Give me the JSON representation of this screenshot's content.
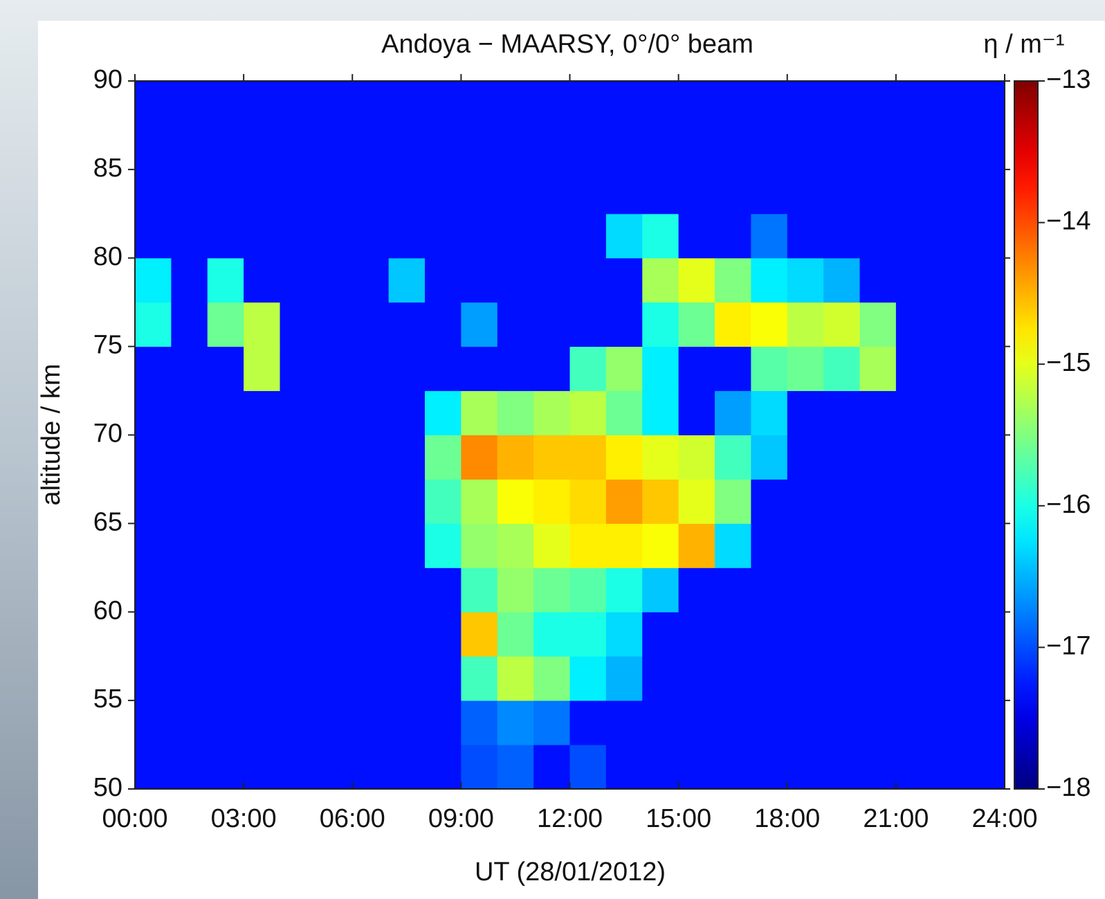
{
  "chart_data": {
    "type": "heatmap",
    "title": "Andoya − MAARSY, 0°/0° beam",
    "xlabel": "UT (28/01/2012)",
    "ylabel": "altitude / km",
    "colorbar_label": "η / m⁻¹",
    "colormap": "jet",
    "xlim": [
      0,
      24
    ],
    "xticks": [
      {
        "value": 0,
        "label": "00:00"
      },
      {
        "value": 3,
        "label": "03:00"
      },
      {
        "value": 6,
        "label": "06:00"
      },
      {
        "value": 9,
        "label": "09:00"
      },
      {
        "value": 12,
        "label": "12:00"
      },
      {
        "value": 15,
        "label": "15:00"
      },
      {
        "value": 18,
        "label": "18:00"
      },
      {
        "value": 21,
        "label": "21:00"
      },
      {
        "value": 24,
        "label": "24:00"
      }
    ],
    "ylim": [
      50,
      90
    ],
    "yticks": [
      50,
      55,
      60,
      65,
      70,
      75,
      80,
      85,
      90
    ],
    "clim": [
      -18,
      -13
    ],
    "cticks": [
      {
        "value": -18,
        "label": "−18"
      },
      {
        "value": -17,
        "label": "−17"
      },
      {
        "value": -16,
        "label": "−16"
      },
      {
        "value": -15,
        "label": "−15"
      },
      {
        "value": -14,
        "label": "−14"
      },
      {
        "value": -13,
        "label": "−13"
      }
    ],
    "x": [
      0.5,
      1.5,
      2.5,
      3.5,
      4.5,
      5.5,
      6.5,
      7.5,
      8.5,
      9.5,
      10.5,
      11.5,
      12.5,
      13.5,
      14.5,
      15.5,
      16.5,
      17.5,
      18.5,
      19.5,
      20.5,
      21.5,
      22.5,
      23.5
    ],
    "y": [
      51.25,
      53.75,
      56.25,
      58.75,
      61.25,
      63.75,
      66.25,
      68.75,
      71.25,
      73.75,
      76.25,
      78.75,
      81.25,
      83.75,
      86.25,
      88.75
    ],
    "z": [
      [
        -17.3,
        -17.3,
        -17.3,
        -17.3,
        -17.3,
        -17.3,
        -17.3,
        -17.3,
        -17.3,
        -17.0,
        -16.9,
        -17.3,
        -17.0,
        -17.3,
        -17.3,
        -17.3,
        -17.3,
        -17.3,
        -17.3,
        -17.3,
        -17.3,
        -17.3,
        -17.3,
        -17.3
      ],
      [
        -17.3,
        -17.3,
        -17.3,
        -17.3,
        -17.3,
        -17.3,
        -17.3,
        -17.3,
        -17.3,
        -16.9,
        -16.7,
        -16.8,
        -17.3,
        -17.3,
        -17.3,
        -17.3,
        -17.3,
        -17.3,
        -17.3,
        -17.3,
        -17.3,
        -17.3,
        -17.3,
        -17.3
      ],
      [
        -17.3,
        -17.3,
        -17.3,
        -17.3,
        -17.3,
        -17.3,
        -17.3,
        -17.3,
        -17.3,
        -15.8,
        -15.2,
        -15.5,
        -16.2,
        -16.5,
        -17.3,
        -17.3,
        -17.3,
        -17.3,
        -17.3,
        -17.3,
        -17.3,
        -17.3,
        -17.3,
        -17.3
      ],
      [
        -17.3,
        -17.3,
        -17.3,
        -17.3,
        -17.3,
        -17.3,
        -17.3,
        -17.3,
        -17.3,
        -14.6,
        -15.6,
        -16.0,
        -16.0,
        -16.3,
        -17.3,
        -17.3,
        -17.3,
        -17.3,
        -17.3,
        -17.3,
        -17.3,
        -17.3,
        -17.3,
        -17.3
      ],
      [
        -17.3,
        -17.3,
        -17.3,
        -17.3,
        -17.3,
        -17.3,
        -17.3,
        -17.3,
        -17.3,
        -15.8,
        -15.4,
        -15.6,
        -15.7,
        -16.0,
        -16.4,
        -17.3,
        -17.3,
        -17.3,
        -17.3,
        -17.3,
        -17.3,
        -17.3,
        -17.3,
        -17.3
      ],
      [
        -17.3,
        -17.3,
        -17.3,
        -17.3,
        -17.3,
        -17.3,
        -17.3,
        -17.3,
        -16.0,
        -15.4,
        -15.3,
        -15.0,
        -14.8,
        -14.8,
        -14.9,
        -14.5,
        -16.3,
        -17.3,
        -17.3,
        -17.3,
        -17.3,
        -17.3,
        -17.3,
        -17.3
      ],
      [
        -17.3,
        -17.3,
        -17.3,
        -17.3,
        -17.3,
        -17.3,
        -17.3,
        -17.3,
        -15.8,
        -15.3,
        -14.9,
        -14.8,
        -14.7,
        -14.4,
        -14.6,
        -15.0,
        -15.5,
        -17.3,
        -17.3,
        -17.3,
        -17.3,
        -17.3,
        -17.3,
        -17.3
      ],
      [
        -17.3,
        -17.3,
        -17.3,
        -17.3,
        -17.3,
        -17.3,
        -17.3,
        -17.3,
        -15.6,
        -14.3,
        -14.5,
        -14.6,
        -14.6,
        -14.8,
        -15.0,
        -15.1,
        -15.8,
        -16.4,
        -17.3,
        -17.3,
        -17.3,
        -17.3,
        -17.3,
        -17.3
      ],
      [
        -17.3,
        -17.3,
        -17.3,
        -17.3,
        -17.3,
        -17.3,
        -17.3,
        -17.3,
        -16.2,
        -15.3,
        -15.5,
        -15.3,
        -15.2,
        -15.6,
        -16.2,
        -17.3,
        -16.6,
        -16.3,
        -17.3,
        -17.3,
        -17.3,
        -17.3,
        -17.3,
        -17.3
      ],
      [
        -17.3,
        -17.3,
        -17.3,
        -15.2,
        -17.3,
        -17.3,
        -17.3,
        -17.3,
        -17.3,
        -17.3,
        -17.3,
        -17.3,
        -15.8,
        -15.4,
        -16.2,
        -17.3,
        -17.3,
        -15.7,
        -15.6,
        -15.8,
        -15.3,
        -17.3,
        -17.3,
        -17.3
      ],
      [
        -16.0,
        -17.3,
        -15.6,
        -15.2,
        -17.3,
        -17.3,
        -17.3,
        -17.3,
        -17.3,
        -16.6,
        -17.3,
        -17.3,
        -17.3,
        -17.3,
        -16.0,
        -15.6,
        -14.8,
        -14.9,
        -15.2,
        -15.1,
        -15.5,
        -17.3,
        -17.3,
        -17.3
      ],
      [
        -16.2,
        -17.3,
        -16.0,
        -17.3,
        -17.3,
        -17.3,
        -17.3,
        -16.4,
        -17.3,
        -17.3,
        -17.3,
        -17.3,
        -17.3,
        -17.3,
        -15.3,
        -15.0,
        -15.5,
        -16.2,
        -16.3,
        -16.5,
        -17.3,
        -17.3,
        -17.3,
        -17.3
      ],
      [
        -17.3,
        -17.3,
        -17.3,
        -17.3,
        -17.3,
        -17.3,
        -17.3,
        -17.3,
        -17.3,
        -17.3,
        -17.3,
        -17.3,
        -17.3,
        -16.3,
        -16.0,
        -17.3,
        -17.3,
        -16.8,
        -17.3,
        -17.3,
        -17.3,
        -17.3,
        -17.3,
        -17.3
      ],
      [
        -17.3,
        -17.3,
        -17.3,
        -17.3,
        -17.3,
        -17.3,
        -17.3,
        -17.3,
        -17.3,
        -17.3,
        -17.3,
        -17.3,
        -17.3,
        -17.3,
        -17.3,
        -17.3,
        -17.3,
        -17.3,
        -17.3,
        -17.3,
        -17.3,
        -17.3,
        -17.3,
        -17.3
      ],
      [
        -17.3,
        -17.3,
        -17.3,
        -17.3,
        -17.3,
        -17.3,
        -17.3,
        -17.3,
        -17.3,
        -17.3,
        -17.3,
        -17.3,
        -17.3,
        -17.3,
        -17.3,
        -17.3,
        -17.3,
        -17.3,
        -17.3,
        -17.3,
        -17.3,
        -17.3,
        -17.3,
        -17.3
      ],
      [
        -17.3,
        -17.3,
        -17.3,
        -17.3,
        -17.3,
        -17.3,
        -17.3,
        -17.3,
        -17.3,
        -17.3,
        -17.3,
        -17.3,
        -17.3,
        -17.3,
        -17.3,
        -17.3,
        -17.3,
        -17.3,
        -17.3,
        -17.3,
        -17.3,
        -17.3,
        -17.3,
        -17.3
      ]
    ]
  }
}
